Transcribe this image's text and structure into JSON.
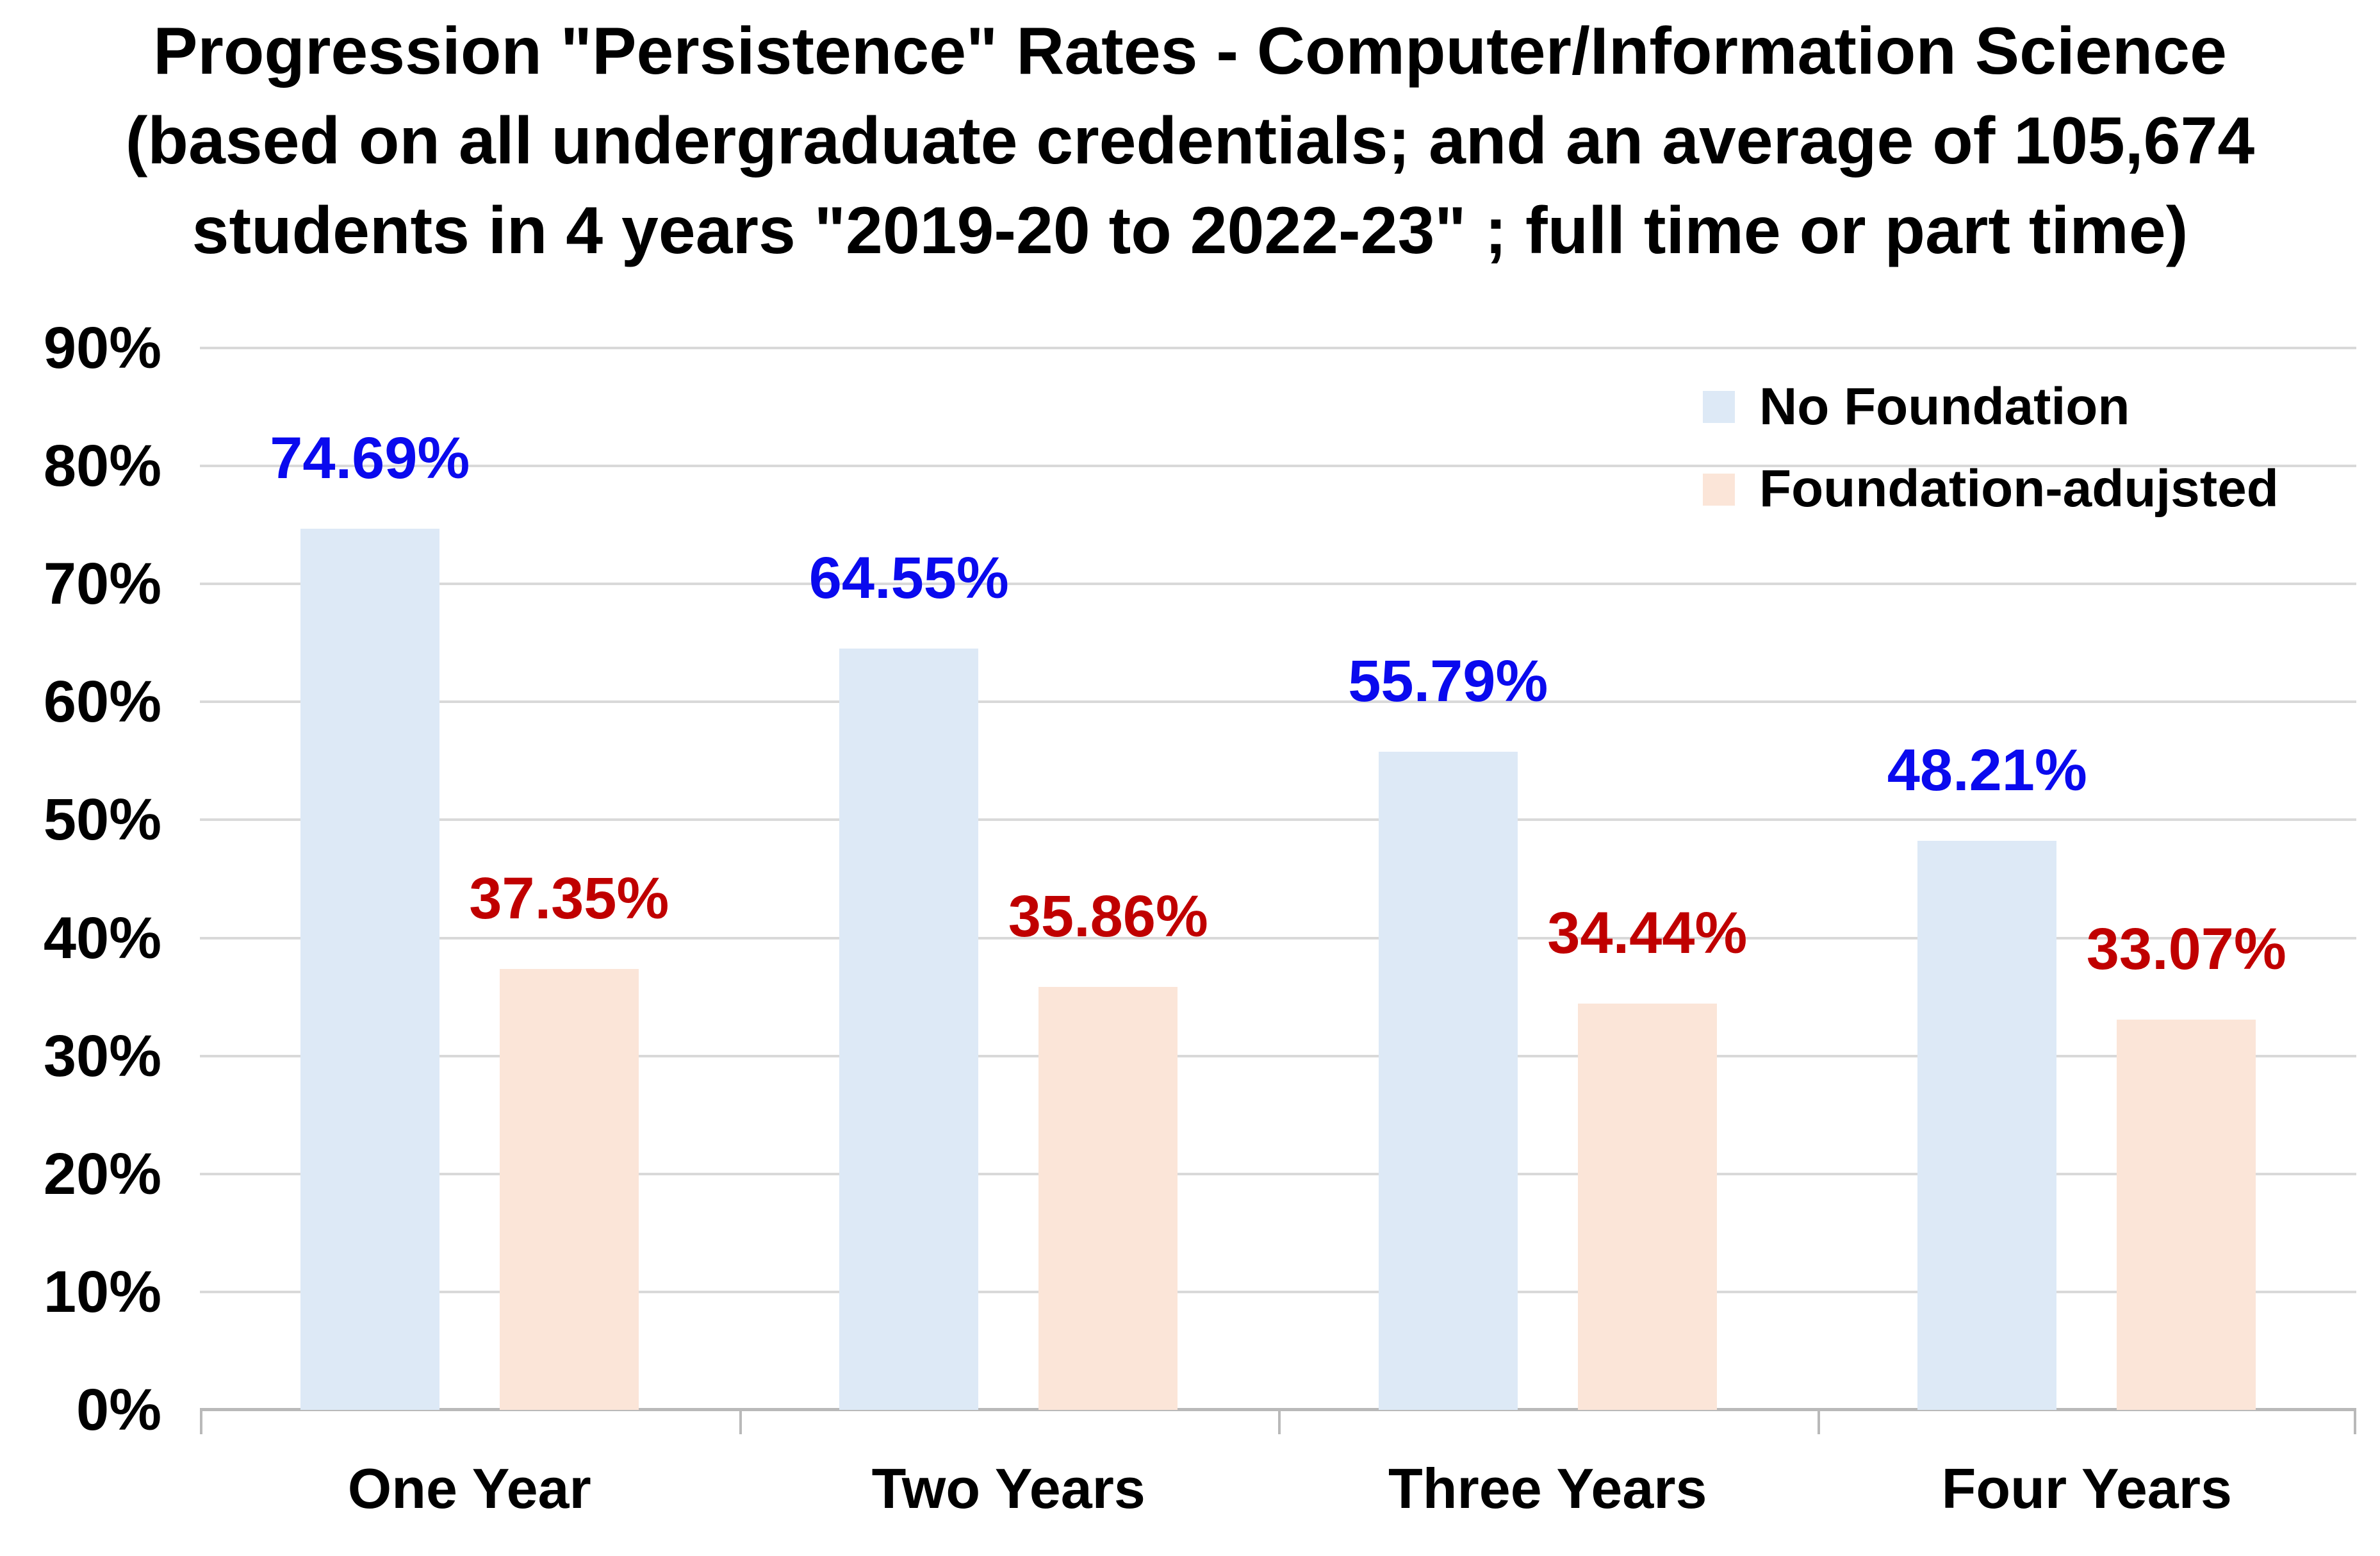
{
  "chart_data": {
    "type": "bar",
    "title": "Progression \"Persistence\" Rates - Computer/Information Science (based on all undergraduate credentials; and an average of 105,674 students in 4 years \"2019-20 to 2022-23\" ; full time or part time)",
    "title_lines": [
      "Progression \"Persistence\" Rates - Computer/Information Science",
      "(based on all undergraduate credentials; and an average of 105,674",
      "students in 4 years \"2019-20 to 2022-23\" ; full time or part time)"
    ],
    "categories": [
      "One Year",
      "Two Years",
      "Three Years",
      "Four Years"
    ],
    "series": [
      {
        "name": "No Foundation",
        "values": [
          74.69,
          64.55,
          55.79,
          48.21
        ],
        "labels": [
          "74.69%",
          "64.55%",
          "55.79%",
          "48.21%"
        ],
        "bar_color": "#dde9f6",
        "label_color": "#0a0aee"
      },
      {
        "name": "Foundation-adujsted",
        "values": [
          37.35,
          35.86,
          34.44,
          33.07
        ],
        "labels": [
          "37.35%",
          "35.86%",
          "34.44%",
          "33.07%"
        ],
        "bar_color": "#fbe5d8",
        "label_color": "#c00000"
      }
    ],
    "ylim": [
      0,
      90
    ],
    "ytick_step": 10,
    "ytick_labels": [
      "0%",
      "10%",
      "20%",
      "30%",
      "40%",
      "50%",
      "60%",
      "70%",
      "80%",
      "90%"
    ],
    "grid": true,
    "legend_position": "top-right",
    "gridline_color": "#d9d9d9",
    "axis_color": "#b9b9b9",
    "background_color": "#ffffff",
    "title_color": "#000000"
  }
}
